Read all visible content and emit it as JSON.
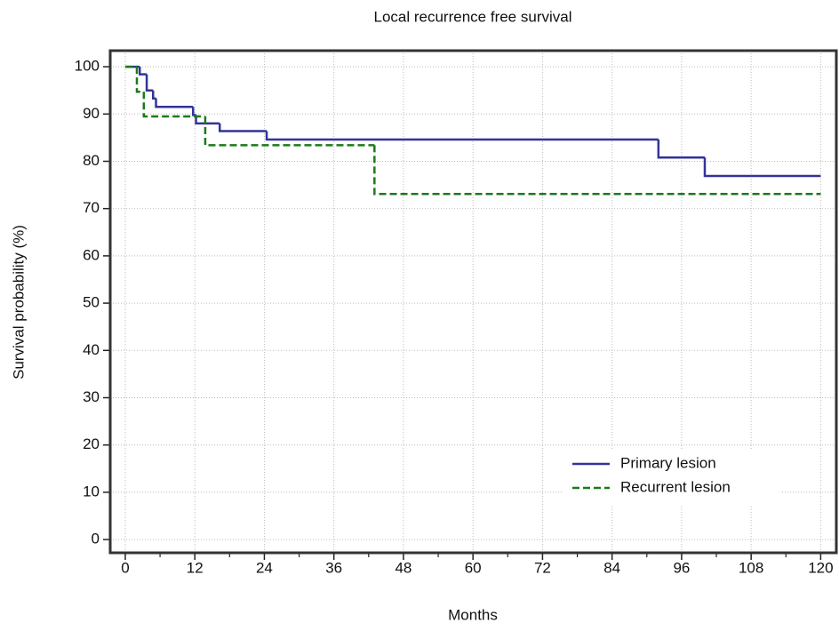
{
  "chart_data": {
    "type": "step",
    "title": "Local recurrence free survival",
    "xlabel": "Months",
    "ylabel": "Survival probability (%)",
    "xlim": [
      -2.6,
      122.7
    ],
    "ylim": [
      -2.8,
      103.4
    ],
    "xticks": [
      0,
      12,
      24,
      36,
      48,
      60,
      72,
      84,
      96,
      108,
      120
    ],
    "yticks": [
      0,
      10,
      20,
      30,
      40,
      50,
      60,
      70,
      80,
      90,
      100
    ],
    "grid": true,
    "legend": "lower right",
    "series": [
      {
        "name": "Primary lesion",
        "color": "#333399",
        "dash": "solid",
        "x": [
          0,
          2.5,
          3.7,
          4.8,
          5.3,
          11.7,
          12.2,
          16.3,
          24.4,
          92,
          100,
          120
        ],
        "values": [
          100,
          98.4,
          95,
          93.3,
          91.5,
          89.8,
          88,
          86.4,
          84.6,
          80.8,
          76.9,
          76.9
        ]
      },
      {
        "name": "Recurrent lesion",
        "color": "#1a7a1a",
        "dash": "dashed",
        "x": [
          0,
          2,
          3.2,
          13.8,
          43,
          120
        ],
        "values": [
          100,
          94.7,
          89.5,
          83.4,
          73.1,
          73.1
        ]
      }
    ]
  }
}
